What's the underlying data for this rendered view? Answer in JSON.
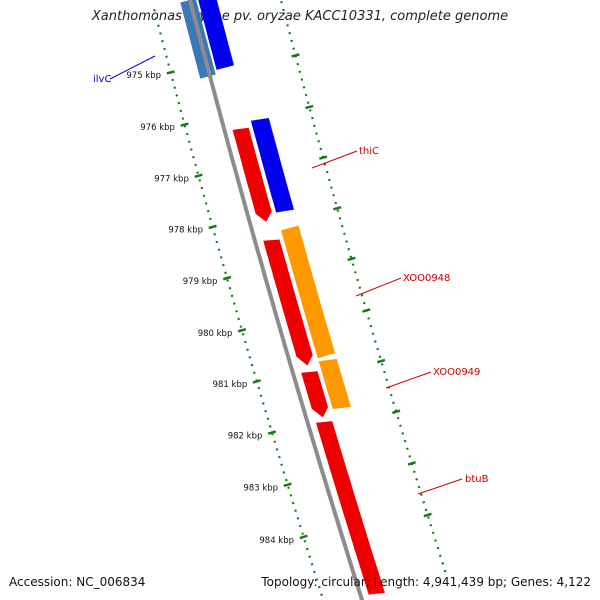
{
  "title": "Xanthomonas oryzae pv. oryzae KACC10331, complete genome",
  "accession_text": "Accession: NC_006834",
  "summary_text": "Topology: circular; Length: 4,941,439 bp; Genes: 4,122",
  "colors": {
    "backbone": "#8c8c8c",
    "tick": "#1a7a1a",
    "plus_red": "#ee0000",
    "plus_orange": "#ff9900",
    "blue": "#0000ee",
    "steel_blue": "#3a78b8",
    "label_red": "#cc0000",
    "label_blue": "#0000cc"
  },
  "scale_ticks": [
    {
      "label": "975 kbp"
    },
    {
      "label": "976 kbp"
    },
    {
      "label": "977 kbp"
    },
    {
      "label": "978 kbp"
    },
    {
      "label": "979 kbp"
    },
    {
      "label": "980 kbp"
    },
    {
      "label": "981 kbp"
    },
    {
      "label": "982 kbp"
    },
    {
      "label": "983 kbp"
    },
    {
      "label": "984 kbp"
    }
  ],
  "genes": [
    {
      "name": "ilvC",
      "label_color": "blue"
    },
    {
      "name": "thiC",
      "label_color": "red"
    },
    {
      "name": "XOO0948",
      "label_color": "red"
    },
    {
      "name": "XOO0949",
      "label_color": "red"
    },
    {
      "name": "btuB",
      "label_color": "red"
    }
  ]
}
